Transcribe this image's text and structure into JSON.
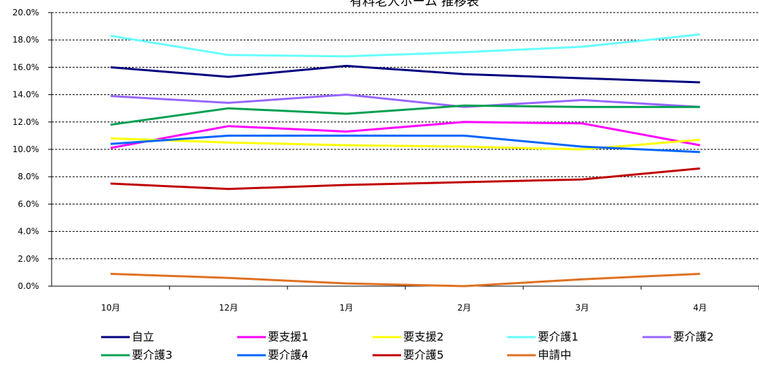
{
  "chart_data": {
    "type": "line",
    "title": "有料老人ホーム 推移表",
    "categories": [
      "10月",
      "12月",
      "1月",
      "2月",
      "3月",
      "4月"
    ],
    "y_ticks": [
      "0.0%",
      "2.0%",
      "4.0%",
      "6.0%",
      "8.0%",
      "10.0%",
      "12.0%",
      "14.0%",
      "16.0%",
      "18.0%",
      "20.0%"
    ],
    "ylim": [
      0,
      20
    ],
    "grid": true,
    "legend_position": "bottom",
    "series": [
      {
        "name": "自立",
        "color": "#000080",
        "values": [
          16.0,
          15.3,
          16.1,
          15.5,
          15.2,
          14.9
        ]
      },
      {
        "name": "要支援1",
        "color": "#FF00FF",
        "values": [
          10.1,
          11.7,
          11.3,
          12.0,
          11.9,
          10.3
        ]
      },
      {
        "name": "要支援2",
        "color": "#FFFF00",
        "values": [
          10.8,
          10.5,
          10.3,
          10.2,
          10.0,
          10.7
        ]
      },
      {
        "name": "要介護1",
        "color": "#66FFFF",
        "values": [
          18.3,
          16.9,
          16.8,
          17.1,
          17.5,
          18.4
        ]
      },
      {
        "name": "要介護2",
        "color": "#9966FF",
        "values": [
          13.9,
          13.4,
          14.0,
          13.1,
          13.6,
          13.1
        ]
      },
      {
        "name": "要介護3",
        "color": "#00A050",
        "values": [
          11.8,
          13.0,
          12.6,
          13.2,
          13.1,
          13.1
        ]
      },
      {
        "name": "要介護4",
        "color": "#0066FF",
        "values": [
          10.4,
          11.0,
          11.0,
          11.0,
          10.2,
          9.8
        ]
      },
      {
        "name": "要介護5",
        "color": "#C00000",
        "values": [
          7.5,
          7.1,
          7.4,
          7.6,
          7.8,
          8.6
        ]
      },
      {
        "name": "申請中",
        "color": "#E07020",
        "values": [
          0.9,
          0.6,
          0.2,
          0.0,
          0.5,
          0.9
        ]
      }
    ]
  }
}
